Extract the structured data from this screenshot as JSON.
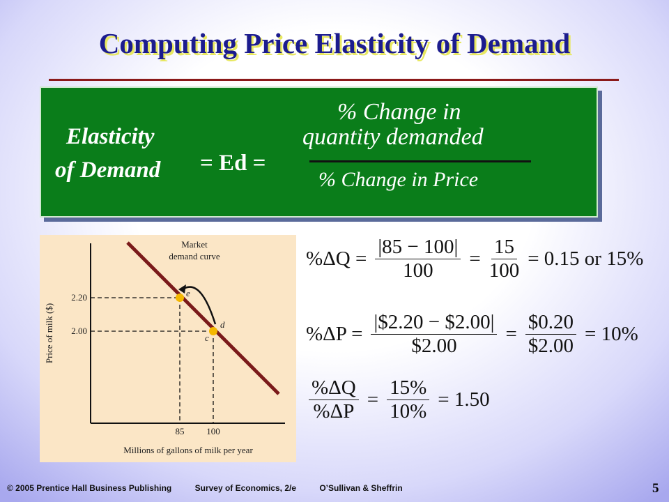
{
  "title": "Computing Price Elasticity of Demand",
  "definition": {
    "left": [
      "Elasticity",
      "of Demand"
    ],
    "equals": "= Ed =",
    "numerator": [
      "% Change in",
      "quantity demanded"
    ],
    "denominator": "% Change in Price"
  },
  "figure": {
    "curve_label": [
      "Market",
      "demand curve"
    ],
    "y_axis_label": "Price of milk ($)",
    "x_axis_label": "Millions of gallons of milk per year",
    "y_ticks": [
      "2.20",
      "2.00"
    ],
    "x_ticks": [
      "85",
      "100"
    ],
    "points": [
      "e",
      "d",
      "c"
    ]
  },
  "equations": [
    [
      {
        "text": "%ΔQ ="
      },
      {
        "num": "|85 − 100|",
        "den": "100"
      },
      {
        "text": "="
      },
      {
        "num": "15",
        "den": "100"
      },
      {
        "text": "= 0.15 or 15%"
      }
    ],
    [
      {
        "text": "%ΔP ="
      },
      {
        "num": "|$2.20 − $2.00|",
        "den": "$2.00"
      },
      {
        "text": "="
      },
      {
        "num": "$0.20",
        "den": "$2.00"
      },
      {
        "text": "= 10%"
      }
    ],
    [
      {
        "num": "%ΔQ",
        "den": "%ΔP"
      },
      {
        "text": "="
      },
      {
        "num": "15%",
        "den": "10%"
      },
      {
        "text": "= 1.50"
      }
    ]
  ],
  "footer": {
    "publisher": "© 2005 Prentice Hall Business Publishing",
    "book": "Survey of Economics, 2/e",
    "authors": "O’Sullivan & Sheffrin",
    "page": "5"
  }
}
